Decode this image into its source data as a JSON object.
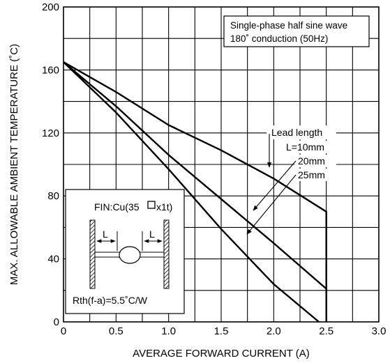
{
  "chart_data": {
    "type": "line",
    "xlabel": "AVERAGE FORWARD CURRENT (A)",
    "ylabel": "MAX. ALLOWABLE AMBIENT TEMPERATURE (˚C)",
    "xlim": [
      0,
      3.0
    ],
    "ylim": [
      0,
      200
    ],
    "x_ticks": [
      "0",
      "0.5",
      "1.0",
      "1.5",
      "2.0",
      "2.5",
      "3.0"
    ],
    "y_ticks": [
      "0",
      "40",
      "80",
      "120",
      "160",
      "200"
    ],
    "grid": true,
    "legend_title": "Lead length",
    "series": [
      {
        "name": "L=10mm",
        "x": [
          0,
          0.5,
          1.0,
          1.5,
          2.0,
          2.5,
          2.5
        ],
        "y": [
          165,
          146,
          125,
          109,
          91,
          70,
          0
        ]
      },
      {
        "name": "20mm",
        "x": [
          0,
          0.5,
          1.0,
          1.5,
          2.0,
          2.5,
          2.5
        ],
        "y": [
          165,
          137,
          106,
          78,
          50,
          21,
          0
        ]
      },
      {
        "name": "25mm",
        "x": [
          0,
          0.5,
          1.0,
          1.5,
          2.0,
          2.43
        ],
        "y": [
          165,
          133,
          97,
          59,
          24,
          0
        ]
      }
    ],
    "annotation_box": [
      "Single-phase half sine wave",
      "180˚ conduction (50Hz)"
    ],
    "inset": {
      "fin_label": "FIN:Cu(35",
      "fin_label_suffix": "x1t)",
      "dimension_label": "L",
      "rth_label": "Rth(f-a)=5.5˚C/W"
    }
  }
}
